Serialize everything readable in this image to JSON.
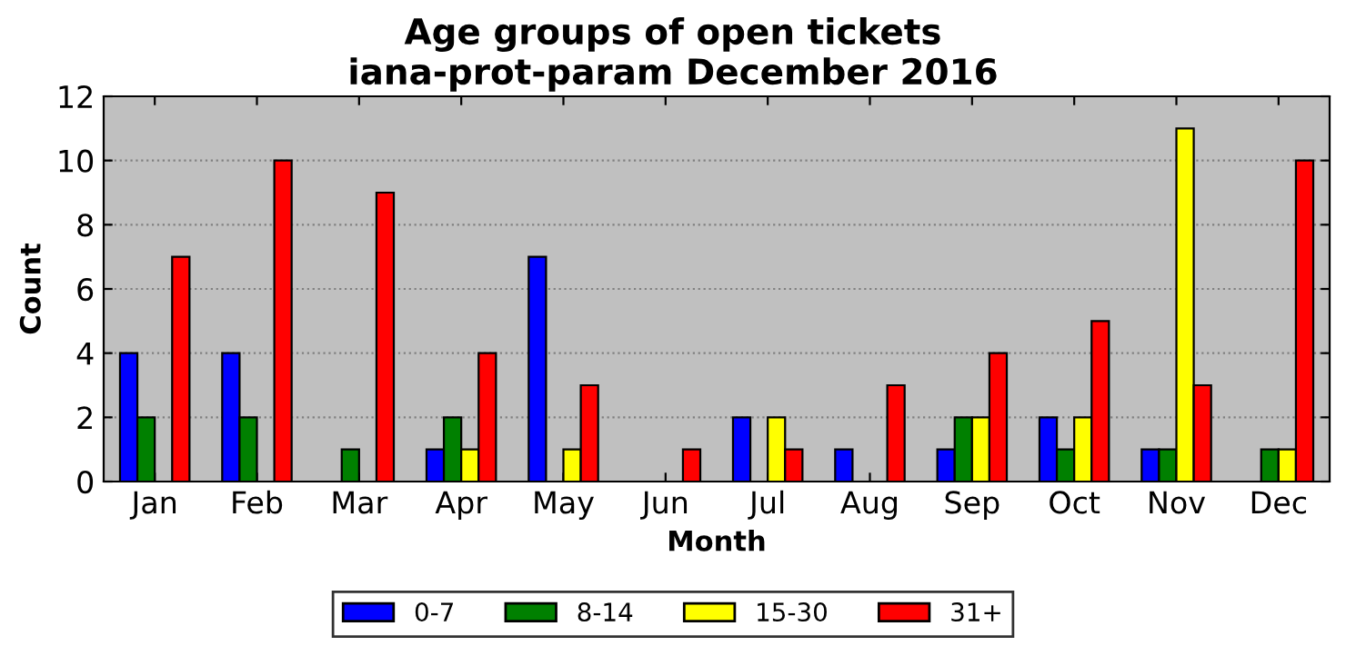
{
  "chart_data": {
    "type": "bar",
    "title": "Age groups of open tickets",
    "subtitle": "iana-prot-param December 2016",
    "xlabel": "Month",
    "ylabel": "Count",
    "categories": [
      "Jan",
      "Feb",
      "Mar",
      "Apr",
      "May",
      "Jun",
      "Jul",
      "Aug",
      "Sep",
      "Oct",
      "Nov",
      "Dec"
    ],
    "series": [
      {
        "name": "0-7",
        "color": "#0000ff",
        "values": [
          4,
          4,
          0,
          1,
          7,
          0,
          2,
          1,
          1,
          2,
          1,
          0
        ]
      },
      {
        "name": "8-14",
        "color": "#008000",
        "values": [
          2,
          2,
          1,
          2,
          0,
          0,
          0,
          0,
          2,
          1,
          1,
          1
        ]
      },
      {
        "name": "15-30",
        "color": "#ffff00",
        "values": [
          0,
          0,
          0,
          1,
          1,
          0,
          2,
          0,
          2,
          2,
          11,
          1
        ]
      },
      {
        "name": "31+",
        "color": "#ff0000",
        "values": [
          7,
          10,
          9,
          4,
          3,
          1,
          1,
          3,
          4,
          5,
          3,
          10
        ]
      }
    ],
    "ylim": [
      0,
      12
    ],
    "yticks": [
      0,
      2,
      4,
      6,
      8,
      10,
      12
    ],
    "grid": "y",
    "legend": "bottom"
  }
}
